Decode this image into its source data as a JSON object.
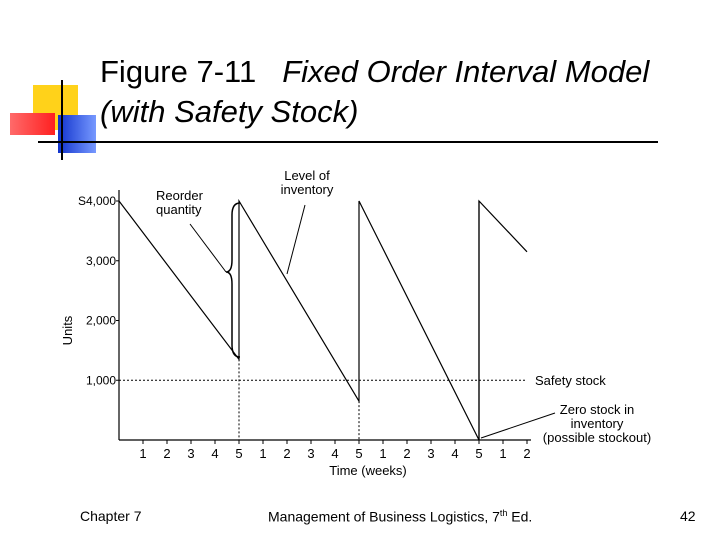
{
  "slide": {
    "title_prefix": "Figure 7-11",
    "title_italic": "Fixed Order Interval Model",
    "title_line2": "(with Safety Stock)",
    "footer_left": "Chapter 7",
    "footer_center_pre": "Management of Business Logistics, 7",
    "footer_center_sup": "th",
    "footer_center_post": " Ed.",
    "page_number": "42",
    "accent_colors": {
      "yellow": "#ffd21a",
      "red": "#ff3b3b",
      "blue": "#3355dd"
    }
  },
  "chart_data": {
    "type": "line",
    "xlabel": "Time (weeks)",
    "ylabel": "Units",
    "x_ticks": [
      "1",
      "2",
      "3",
      "4",
      "5",
      "1",
      "2",
      "3",
      "4",
      "5",
      "1",
      "2",
      "3",
      "4",
      "5",
      "1",
      "2"
    ],
    "y_ticks": [
      {
        "value": 4000,
        "label": "S4,000"
      },
      {
        "value": 3000,
        "label": "3,000"
      },
      {
        "value": 2000,
        "label": "2,000"
      },
      {
        "value": 1000,
        "label": "1,000"
      }
    ],
    "ylim": [
      0,
      4000
    ],
    "xlim": [
      0,
      17
    ],
    "series": [
      {
        "values": [
          [
            0,
            4000
          ],
          [
            5,
            1350
          ],
          [
            5,
            4000
          ],
          [
            10,
            650
          ],
          [
            10,
            4000
          ],
          [
            15,
            0
          ],
          [
            15,
            4000
          ],
          [
            17,
            3150
          ]
        ]
      }
    ],
    "safety_stock": 1000,
    "annotations": {
      "reorder_quantity": "Reorder quantity",
      "level_of_inventory": "Level of inventory",
      "safety_stock": "Safety stock",
      "zero_stock": "Zero stock in inventory (possible stockout)"
    }
  }
}
